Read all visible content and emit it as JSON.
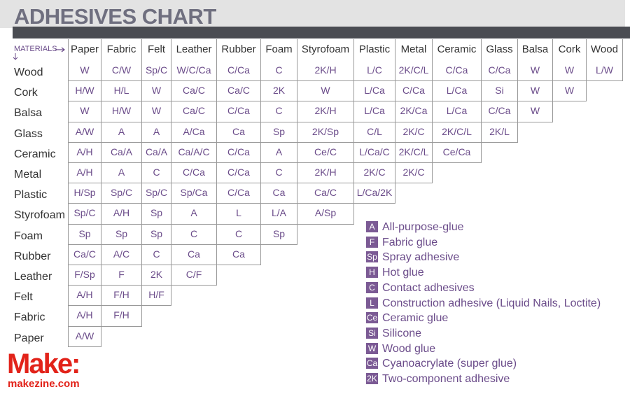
{
  "title": "ADHESIVES CHART",
  "table": {
    "corner_label": "MATERIALS",
    "columns": [
      "Paper",
      "Fabric",
      "Felt",
      "Leather",
      "Rubber",
      "Foam",
      "Styrofoam",
      "Plastic",
      "Metal",
      "Ceramic",
      "Glass",
      "Balsa",
      "Cork",
      "Wood"
    ],
    "rows": [
      {
        "label": "Wood",
        "cells": [
          "W",
          "C/W",
          "Sp/C",
          "W/C/Ca",
          "C/Ca",
          "C",
          "2K/H",
          "L/C",
          "2K/C/L",
          "C/Ca",
          "C/Ca",
          "W",
          "W",
          "L/W"
        ]
      },
      {
        "label": "Cork",
        "cells": [
          "H/W",
          "H/L",
          "W",
          "Ca/C",
          "Ca/C",
          "2K",
          "W",
          "L/Ca",
          "C/Ca",
          "L/Ca",
          "Si",
          "W",
          "W"
        ]
      },
      {
        "label": "Balsa",
        "cells": [
          "W",
          "H/W",
          "W",
          "Ca/C",
          "C/Ca",
          "C",
          "2K/H",
          "L/Ca",
          "2K/Ca",
          "L/Ca",
          "C/Ca",
          "W"
        ]
      },
      {
        "label": "Glass",
        "cells": [
          "A/W",
          "A",
          "A",
          "A/Ca",
          "Ca",
          "Sp",
          "2K/Sp",
          "C/L",
          "2K/C",
          "2K/C/L",
          "2K/L"
        ]
      },
      {
        "label": "Ceramic",
        "cells": [
          "A/H",
          "Ca/A",
          "Ca/A",
          "Ca/A/C",
          "C/Ca",
          "A",
          "Ce/C",
          "L/Ca/C",
          "2K/C/L",
          "Ce/Ca"
        ]
      },
      {
        "label": "Metal",
        "cells": [
          "A/H",
          "A",
          "C",
          "C/Ca",
          "C/Ca",
          "C",
          "2K/H",
          "2K/C",
          "2K/C"
        ]
      },
      {
        "label": "Plastic",
        "cells": [
          "H/Sp",
          "Sp/C",
          "Sp/C",
          "Sp/Ca",
          "C/Ca",
          "Ca",
          "Ca/C",
          "L/Ca/2K"
        ]
      },
      {
        "label": "Styrofoam",
        "cells": [
          "Sp/C",
          "A/H",
          "Sp",
          "A",
          "L",
          "L/A",
          "A/Sp"
        ]
      },
      {
        "label": "Foam",
        "cells": [
          "Sp",
          "Sp",
          "Sp",
          "C",
          "C",
          "Sp"
        ]
      },
      {
        "label": "Rubber",
        "cells": [
          "Ca/C",
          "A/C",
          "C",
          "Ca",
          "Ca"
        ]
      },
      {
        "label": "Leather",
        "cells": [
          "F/Sp",
          "F",
          "2K",
          "C/F"
        ]
      },
      {
        "label": "Felt",
        "cells": [
          "A/H",
          "F/H",
          "H/F"
        ]
      },
      {
        "label": "Fabric",
        "cells": [
          "A/H",
          "F/H"
        ]
      },
      {
        "label": "Paper",
        "cells": [
          "A/W"
        ]
      }
    ]
  },
  "legend": [
    {
      "code": "A",
      "text": "All-purpose-glue"
    },
    {
      "code": "F",
      "text": "Fabric glue"
    },
    {
      "code": "Sp",
      "text": "Spray adhesive"
    },
    {
      "code": "H",
      "text": "Hot glue"
    },
    {
      "code": "C",
      "text": "Contact adhesives"
    },
    {
      "code": "L",
      "text": "Construction adhesive (Liquid Nails, Loctite)"
    },
    {
      "code": "Ce",
      "text": "Ceramic glue"
    },
    {
      "code": "Si",
      "text": "Silicone"
    },
    {
      "code": "W",
      "text": "Wood glue"
    },
    {
      "code": "Ca",
      "text": "Cyanoacrylate (super glue)"
    },
    {
      "code": "2K",
      "text": "Two-component adhesive"
    }
  ],
  "brand": {
    "logo": "Make:",
    "site": "makezine.com"
  }
}
